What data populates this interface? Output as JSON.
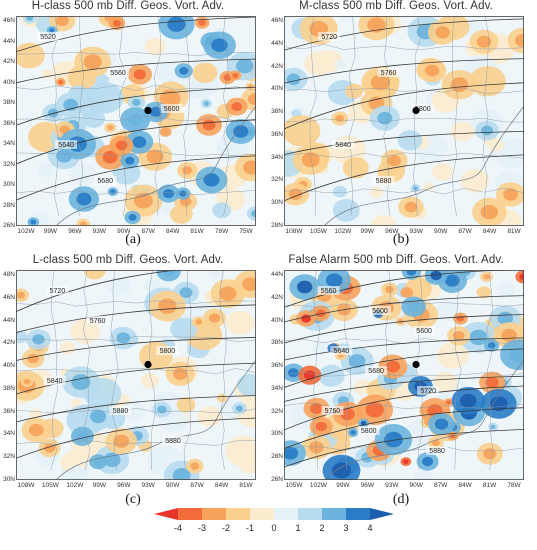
{
  "panels": [
    {
      "id": "a",
      "title": "H-class 500 mb Diff. Geos. Vort. Adv.",
      "caption": "(a)",
      "lat_labels": [
        "46N",
        "44N",
        "42N",
        "40N",
        "38N",
        "36N",
        "34N",
        "32N",
        "30N",
        "28N",
        "26N"
      ],
      "lon_labels": [
        "102W",
        "99W",
        "96W",
        "93W",
        "90W",
        "87W",
        "84W",
        "81W",
        "78W",
        "75W"
      ],
      "contour_labels": [
        "5520",
        "5560",
        "5600",
        "5640",
        "5680"
      ],
      "marker": "black-dot"
    },
    {
      "id": "b",
      "title": "M-class 500 mb Diff. Geos. Vort. Adv.",
      "caption": "(b)",
      "lat_labels": [
        "46N",
        "44N",
        "42N",
        "40N",
        "38N",
        "36N",
        "34N",
        "32N",
        "30N",
        "28N"
      ],
      "lon_labels": [
        "108W",
        "105W",
        "102W",
        "99W",
        "96W",
        "93W",
        "90W",
        "87W",
        "84W",
        "81W"
      ],
      "contour_labels": [
        "5720",
        "5760",
        "5800",
        "5840",
        "5880"
      ],
      "marker": "black-dot"
    },
    {
      "id": "c",
      "title": "L-class 500 mb Diff. Geos. Vort. Adv.",
      "caption": "(c)",
      "lat_labels": [
        "48N",
        "46N",
        "44N",
        "42N",
        "40N",
        "38N",
        "36N",
        "34N",
        "32N",
        "30N"
      ],
      "lon_labels": [
        "108W",
        "105W",
        "102W",
        "99W",
        "96W",
        "93W",
        "90W",
        "87W",
        "84W",
        "81W"
      ],
      "contour_labels": [
        "5720",
        "5760",
        "5800",
        "5840",
        "5880",
        "5880"
      ],
      "marker": "black-dot"
    },
    {
      "id": "d",
      "title": "False Alarm 500 mb Diff. Geos. Vort. Adv.",
      "caption": "(d)",
      "lat_labels": [
        "44N",
        "42N",
        "40N",
        "38N",
        "36N",
        "34N",
        "32N",
        "30N",
        "28N",
        "26N"
      ],
      "lon_labels": [
        "105W",
        "102W",
        "99W",
        "96W",
        "93W",
        "90W",
        "87W",
        "84W",
        "81W",
        "78W"
      ],
      "contour_labels": [
        "5560",
        "5600",
        "5600",
        "5640",
        "5680",
        "5720",
        "5760",
        "5800",
        "5880"
      ],
      "marker": "black-dot"
    }
  ],
  "colorbar": {
    "labels": [
      "-4",
      "-3",
      "-2",
      "-1",
      "0",
      "1",
      "2",
      "3",
      "4"
    ],
    "colors": [
      "#e8352a",
      "#f26b3a",
      "#f7a35c",
      "#f9d08e",
      "#fbeccf",
      "#e4f1f7",
      "#b7dcee",
      "#6cb4dd",
      "#2a7cc6",
      "#1c5fae"
    ]
  }
}
